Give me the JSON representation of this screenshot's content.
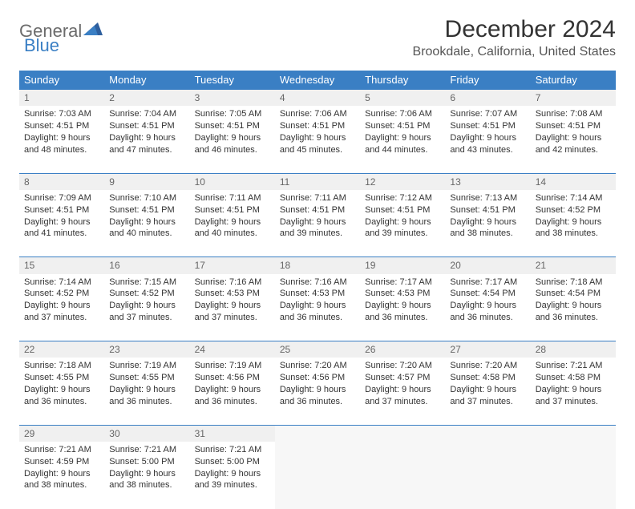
{
  "brand": {
    "part1": "General",
    "part2": "Blue"
  },
  "title": "December 2024",
  "location": "Brookdale, California, United States",
  "colors": {
    "accent": "#3a7fc4",
    "header_bg": "#3a7fc4",
    "header_text": "#ffffff",
    "daynum_bg": "#f0f0f0",
    "empty_bg": "#f7f7f7",
    "text": "#333333"
  },
  "weekdays": [
    "Sunday",
    "Monday",
    "Tuesday",
    "Wednesday",
    "Thursday",
    "Friday",
    "Saturday"
  ],
  "weeks": [
    [
      {
        "n": "1",
        "sunrise": "7:03 AM",
        "sunset": "4:51 PM",
        "dl1": "Daylight: 9 hours",
        "dl2": "and 48 minutes."
      },
      {
        "n": "2",
        "sunrise": "7:04 AM",
        "sunset": "4:51 PM",
        "dl1": "Daylight: 9 hours",
        "dl2": "and 47 minutes."
      },
      {
        "n": "3",
        "sunrise": "7:05 AM",
        "sunset": "4:51 PM",
        "dl1": "Daylight: 9 hours",
        "dl2": "and 46 minutes."
      },
      {
        "n": "4",
        "sunrise": "7:06 AM",
        "sunset": "4:51 PM",
        "dl1": "Daylight: 9 hours",
        "dl2": "and 45 minutes."
      },
      {
        "n": "5",
        "sunrise": "7:06 AM",
        "sunset": "4:51 PM",
        "dl1": "Daylight: 9 hours",
        "dl2": "and 44 minutes."
      },
      {
        "n": "6",
        "sunrise": "7:07 AM",
        "sunset": "4:51 PM",
        "dl1": "Daylight: 9 hours",
        "dl2": "and 43 minutes."
      },
      {
        "n": "7",
        "sunrise": "7:08 AM",
        "sunset": "4:51 PM",
        "dl1": "Daylight: 9 hours",
        "dl2": "and 42 minutes."
      }
    ],
    [
      {
        "n": "8",
        "sunrise": "7:09 AM",
        "sunset": "4:51 PM",
        "dl1": "Daylight: 9 hours",
        "dl2": "and 41 minutes."
      },
      {
        "n": "9",
        "sunrise": "7:10 AM",
        "sunset": "4:51 PM",
        "dl1": "Daylight: 9 hours",
        "dl2": "and 40 minutes."
      },
      {
        "n": "10",
        "sunrise": "7:11 AM",
        "sunset": "4:51 PM",
        "dl1": "Daylight: 9 hours",
        "dl2": "and 40 minutes."
      },
      {
        "n": "11",
        "sunrise": "7:11 AM",
        "sunset": "4:51 PM",
        "dl1": "Daylight: 9 hours",
        "dl2": "and 39 minutes."
      },
      {
        "n": "12",
        "sunrise": "7:12 AM",
        "sunset": "4:51 PM",
        "dl1": "Daylight: 9 hours",
        "dl2": "and 39 minutes."
      },
      {
        "n": "13",
        "sunrise": "7:13 AM",
        "sunset": "4:51 PM",
        "dl1": "Daylight: 9 hours",
        "dl2": "and 38 minutes."
      },
      {
        "n": "14",
        "sunrise": "7:14 AM",
        "sunset": "4:52 PM",
        "dl1": "Daylight: 9 hours",
        "dl2": "and 38 minutes."
      }
    ],
    [
      {
        "n": "15",
        "sunrise": "7:14 AM",
        "sunset": "4:52 PM",
        "dl1": "Daylight: 9 hours",
        "dl2": "and 37 minutes."
      },
      {
        "n": "16",
        "sunrise": "7:15 AM",
        "sunset": "4:52 PM",
        "dl1": "Daylight: 9 hours",
        "dl2": "and 37 minutes."
      },
      {
        "n": "17",
        "sunrise": "7:16 AM",
        "sunset": "4:53 PM",
        "dl1": "Daylight: 9 hours",
        "dl2": "and 37 minutes."
      },
      {
        "n": "18",
        "sunrise": "7:16 AM",
        "sunset": "4:53 PM",
        "dl1": "Daylight: 9 hours",
        "dl2": "and 36 minutes."
      },
      {
        "n": "19",
        "sunrise": "7:17 AM",
        "sunset": "4:53 PM",
        "dl1": "Daylight: 9 hours",
        "dl2": "and 36 minutes."
      },
      {
        "n": "20",
        "sunrise": "7:17 AM",
        "sunset": "4:54 PM",
        "dl1": "Daylight: 9 hours",
        "dl2": "and 36 minutes."
      },
      {
        "n": "21",
        "sunrise": "7:18 AM",
        "sunset": "4:54 PM",
        "dl1": "Daylight: 9 hours",
        "dl2": "and 36 minutes."
      }
    ],
    [
      {
        "n": "22",
        "sunrise": "7:18 AM",
        "sunset": "4:55 PM",
        "dl1": "Daylight: 9 hours",
        "dl2": "and 36 minutes."
      },
      {
        "n": "23",
        "sunrise": "7:19 AM",
        "sunset": "4:55 PM",
        "dl1": "Daylight: 9 hours",
        "dl2": "and 36 minutes."
      },
      {
        "n": "24",
        "sunrise": "7:19 AM",
        "sunset": "4:56 PM",
        "dl1": "Daylight: 9 hours",
        "dl2": "and 36 minutes."
      },
      {
        "n": "25",
        "sunrise": "7:20 AM",
        "sunset": "4:56 PM",
        "dl1": "Daylight: 9 hours",
        "dl2": "and 36 minutes."
      },
      {
        "n": "26",
        "sunrise": "7:20 AM",
        "sunset": "4:57 PM",
        "dl1": "Daylight: 9 hours",
        "dl2": "and 37 minutes."
      },
      {
        "n": "27",
        "sunrise": "7:20 AM",
        "sunset": "4:58 PM",
        "dl1": "Daylight: 9 hours",
        "dl2": "and 37 minutes."
      },
      {
        "n": "28",
        "sunrise": "7:21 AM",
        "sunset": "4:58 PM",
        "dl1": "Daylight: 9 hours",
        "dl2": "and 37 minutes."
      }
    ],
    [
      {
        "n": "29",
        "sunrise": "7:21 AM",
        "sunset": "4:59 PM",
        "dl1": "Daylight: 9 hours",
        "dl2": "and 38 minutes."
      },
      {
        "n": "30",
        "sunrise": "7:21 AM",
        "sunset": "5:00 PM",
        "dl1": "Daylight: 9 hours",
        "dl2": "and 38 minutes."
      },
      {
        "n": "31",
        "sunrise": "7:21 AM",
        "sunset": "5:00 PM",
        "dl1": "Daylight: 9 hours",
        "dl2": "and 39 minutes."
      },
      null,
      null,
      null,
      null
    ]
  ],
  "labels": {
    "sunrise": "Sunrise:",
    "sunset": "Sunset:"
  }
}
